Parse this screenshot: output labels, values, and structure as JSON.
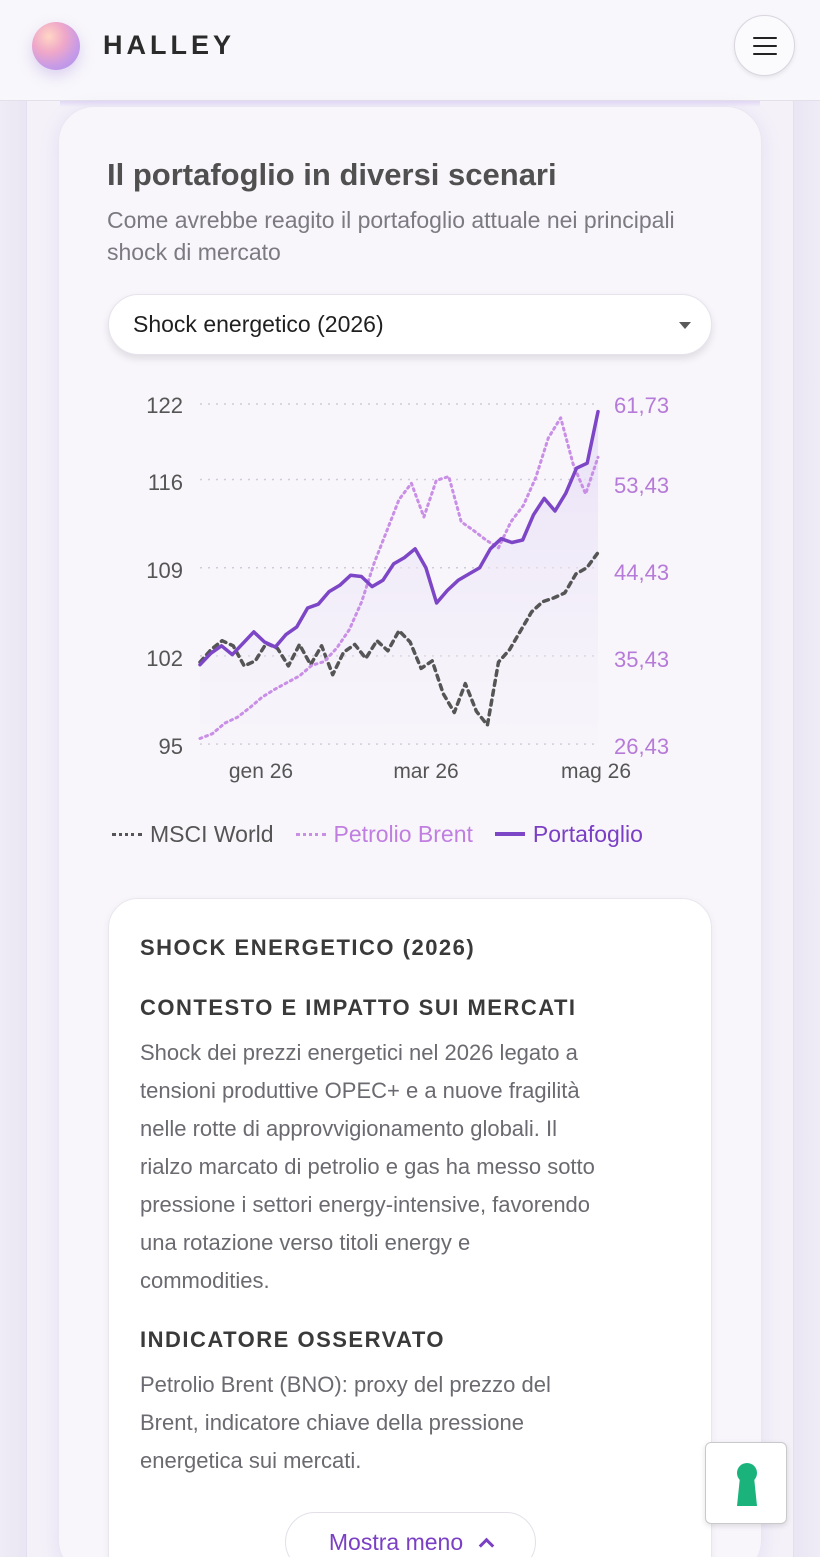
{
  "header": {
    "brand": "HALLEY",
    "logo_icon": "orb-logo-icon",
    "menu_icon": "hamburger-icon"
  },
  "section": {
    "title": "Il portafoglio in diversi scenari",
    "subtitle": "Come avrebbe reagito il portafoglio attuale nei principali shock di mercato"
  },
  "scenario_select": {
    "selected": "Shock energetico (2026)"
  },
  "chart_data": {
    "type": "line",
    "title": "",
    "x_ticks": [
      "gen 26",
      "mar 26",
      "mag 26"
    ],
    "y_left": {
      "ticks": [
        "122",
        "116",
        "109",
        "102",
        "95"
      ],
      "range": [
        95,
        122
      ]
    },
    "y_right": {
      "ticks": [
        "61,73",
        "53,43",
        "44,43",
        "35,43",
        "26,43"
      ],
      "range": [
        26.43,
        61.73
      ]
    },
    "grid": "dotted horizontal",
    "legend_position": "bottom",
    "series": [
      {
        "name": "MSCI World",
        "axis": "left",
        "color": "#555555",
        "style": "dashed",
        "values": [
          101.5,
          102.5,
          103.2,
          102.8,
          101.2,
          101.6,
          103.0,
          102.6,
          101.2,
          102.9,
          101.3,
          102.8,
          100.5,
          102.3,
          102.9,
          101.8,
          103.2,
          102.4,
          104.0,
          103.1,
          101.0,
          101.6,
          99.0,
          97.5,
          99.8,
          97.6,
          96.5,
          101.5,
          102.5,
          104.0,
          105.5,
          106.3,
          106.6,
          107.0,
          108.5,
          109.0,
          110.2
        ]
      },
      {
        "name": "Petrolio Brent",
        "axis": "right",
        "color": "#c98ee6",
        "style": "dotted",
        "values": [
          27.0,
          27.5,
          28.6,
          29.2,
          30.2,
          31.3,
          32.1,
          32.8,
          33.5,
          34.6,
          35.0,
          36.4,
          38.3,
          41.2,
          45.2,
          48.5,
          51.8,
          53.5,
          50.0,
          53.8,
          54.2,
          49.5,
          48.6,
          47.6,
          46.8,
          49.5,
          51.2,
          54.1,
          58.2,
          60.3,
          55.5,
          52.4,
          56.2
        ]
      },
      {
        "name": "Portafoglio",
        "axis": "left",
        "color": "#7d46c6",
        "style": "solid",
        "values": [
          101.3,
          102.2,
          102.8,
          102.1,
          103.0,
          103.9,
          103.1,
          102.7,
          103.7,
          104.3,
          105.8,
          106.1,
          107.1,
          107.6,
          108.4,
          108.3,
          107.5,
          108.0,
          109.3,
          109.8,
          110.5,
          109.0,
          106.2,
          107.2,
          108.0,
          108.5,
          109.0,
          110.5,
          111.3,
          111.0,
          111.2,
          113.2,
          114.5,
          113.5,
          114.9,
          116.9,
          117.3,
          121.4
        ]
      }
    ]
  },
  "info": {
    "heading": "SHOCK ENERGETICO (2026)",
    "context_heading": "CONTESTO E IMPATTO SUI MERCATI",
    "context_lines": [
      "Shock dei prezzi energetici nel 2026 legato a",
      "tensioni produttive OPEC+ e a nuove fragilità",
      "nelle rotte di approvvigionamento globali. Il",
      "rialzo marcato di petrolio e gas ha messo sotto",
      "pressione i settori energy-intensive, favorendo",
      "una rotazione verso titoli energy e",
      "commodities."
    ],
    "indicator_heading": "INDICATORE OSSERVATO",
    "indicator_lines": [
      "Petrolio Brent (BNO): proxy del prezzo del",
      "Brent, indicatore chiave della pressione",
      "energetica sui mercati."
    ],
    "toggle_label": "Mostra meno",
    "toggle_icon": "chevron-up-icon"
  },
  "help_widget_icon": "keyhole-icon"
}
